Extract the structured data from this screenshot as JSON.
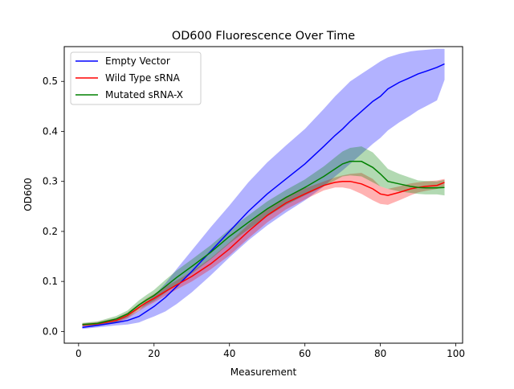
{
  "chart_data": {
    "type": "line",
    "title": "OD600 Fluorescence Over Time",
    "xlabel": "Measurement",
    "ylabel": "OD600",
    "xlim": [
      -3.8,
      101.8
    ],
    "ylim": [
      -0.0235,
      0.5695
    ],
    "xticks": [
      0,
      20,
      40,
      60,
      80,
      100
    ],
    "xtick_labels": [
      "0",
      "20",
      "40",
      "60",
      "80",
      "100"
    ],
    "yticks": [
      0.0,
      0.1,
      0.2,
      0.3,
      0.4,
      0.5
    ],
    "ytick_labels": [
      "0.0",
      "0.1",
      "0.2",
      "0.3",
      "0.4",
      "0.5"
    ],
    "grid": false,
    "legend_position": "upper-left",
    "x": [
      1,
      5,
      10,
      13,
      16,
      18,
      20,
      23,
      26,
      30,
      35,
      40,
      45,
      50,
      55,
      60,
      65,
      68,
      70,
      72,
      75,
      78,
      80,
      82,
      85,
      88,
      90,
      92,
      95,
      97
    ],
    "series": [
      {
        "name": "Empty Vector",
        "color": "#0000ff",
        "fill": "#0000ff",
        "values": [
          0.008,
          0.012,
          0.018,
          0.022,
          0.03,
          0.04,
          0.05,
          0.068,
          0.09,
          0.12,
          0.16,
          0.2,
          0.24,
          0.275,
          0.305,
          0.335,
          0.37,
          0.392,
          0.405,
          0.42,
          0.44,
          0.46,
          0.47,
          0.485,
          0.498,
          0.508,
          0.515,
          0.52,
          0.528,
          0.535
        ],
        "lower": [
          0.005,
          0.008,
          0.012,
          0.014,
          0.018,
          0.024,
          0.03,
          0.04,
          0.055,
          0.078,
          0.112,
          0.148,
          0.182,
          0.212,
          0.238,
          0.262,
          0.29,
          0.31,
          0.322,
          0.335,
          0.355,
          0.375,
          0.387,
          0.402,
          0.418,
          0.432,
          0.442,
          0.45,
          0.462,
          0.503
        ],
        "upper": [
          0.012,
          0.017,
          0.024,
          0.03,
          0.042,
          0.058,
          0.072,
          0.096,
          0.125,
          0.162,
          0.208,
          0.252,
          0.298,
          0.338,
          0.372,
          0.405,
          0.445,
          0.47,
          0.485,
          0.5,
          0.515,
          0.53,
          0.54,
          0.548,
          0.555,
          0.56,
          0.562,
          0.563,
          0.565,
          0.565
        ]
      },
      {
        "name": "Wild Type sRNA",
        "color": "#ff0000",
        "fill": "#ff0000",
        "values": [
          0.013,
          0.015,
          0.022,
          0.032,
          0.048,
          0.058,
          0.066,
          0.08,
          0.093,
          0.11,
          0.135,
          0.165,
          0.2,
          0.232,
          0.257,
          0.275,
          0.292,
          0.298,
          0.3,
          0.3,
          0.295,
          0.285,
          0.275,
          0.272,
          0.278,
          0.285,
          0.288,
          0.29,
          0.292,
          0.298
        ],
        "lower": [
          0.01,
          0.011,
          0.017,
          0.026,
          0.041,
          0.05,
          0.058,
          0.071,
          0.084,
          0.1,
          0.124,
          0.152,
          0.186,
          0.218,
          0.244,
          0.264,
          0.282,
          0.288,
          0.288,
          0.285,
          0.275,
          0.262,
          0.255,
          0.253,
          0.262,
          0.272,
          0.278,
          0.281,
          0.285,
          0.29
        ],
        "upper": [
          0.016,
          0.019,
          0.027,
          0.038,
          0.055,
          0.066,
          0.075,
          0.089,
          0.102,
          0.12,
          0.146,
          0.178,
          0.214,
          0.246,
          0.27,
          0.286,
          0.3,
          0.308,
          0.312,
          0.315,
          0.317,
          0.305,
          0.29,
          0.285,
          0.29,
          0.296,
          0.298,
          0.3,
          0.302,
          0.305
        ]
      },
      {
        "name": "Mutated sRNA-X",
        "color": "#008000",
        "fill": "#008000",
        "values": [
          0.014,
          0.016,
          0.025,
          0.035,
          0.053,
          0.063,
          0.072,
          0.09,
          0.108,
          0.13,
          0.158,
          0.19,
          0.218,
          0.245,
          0.268,
          0.288,
          0.31,
          0.325,
          0.335,
          0.34,
          0.34,
          0.328,
          0.315,
          0.3,
          0.295,
          0.29,
          0.288,
          0.287,
          0.287,
          0.288
        ],
        "lower": [
          0.011,
          0.012,
          0.019,
          0.028,
          0.044,
          0.053,
          0.061,
          0.077,
          0.094,
          0.116,
          0.144,
          0.176,
          0.204,
          0.23,
          0.253,
          0.272,
          0.29,
          0.302,
          0.31,
          0.312,
          0.31,
          0.298,
          0.29,
          0.285,
          0.28,
          0.277,
          0.275,
          0.274,
          0.274,
          0.272
        ],
        "upper": [
          0.017,
          0.02,
          0.031,
          0.042,
          0.062,
          0.073,
          0.083,
          0.103,
          0.122,
          0.144,
          0.172,
          0.204,
          0.232,
          0.26,
          0.283,
          0.304,
          0.33,
          0.348,
          0.36,
          0.367,
          0.37,
          0.358,
          0.342,
          0.325,
          0.315,
          0.307,
          0.302,
          0.301,
          0.3,
          0.303
        ]
      }
    ]
  }
}
